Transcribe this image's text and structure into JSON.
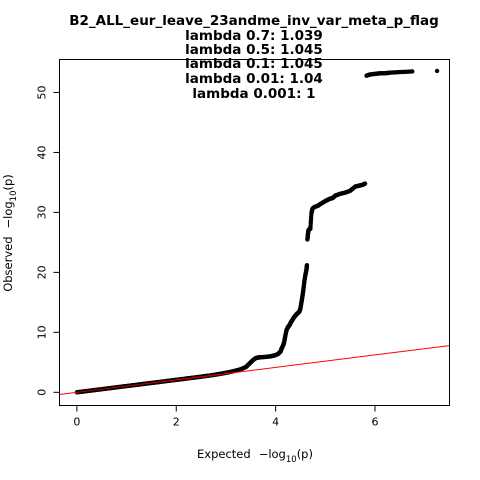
{
  "chart_data": {
    "type": "scatter",
    "title": "B2_ALL_eur_leave_23andme_inv_var_meta_p_flag",
    "lambda_lines": [
      "lambda 0.7: 1.039",
      "lambda 0.5: 1.045",
      "lambda 0.1: 1.045",
      "lambda 0.01: 1.04",
      "lambda 0.001: 1"
    ],
    "xlabel": {
      "prefix": "Expected",
      "minus": "−log",
      "sub": "10",
      "suffix": "(p)"
    },
    "ylabel": {
      "prefix": "Observed",
      "minus": "−log",
      "sub": "10",
      "suffix": "(p)"
    },
    "xlim": [
      -0.35,
      7.5
    ],
    "ylim": [
      -2.2,
      55.5
    ],
    "xticks": [
      0,
      2,
      4,
      6
    ],
    "yticks": [
      0,
      10,
      20,
      30,
      40,
      50
    ],
    "grid": false,
    "legend": "none",
    "point_color": "#000000",
    "reference_line": {
      "slope": 1.039,
      "intercept": 0,
      "color": "#ff0000"
    },
    "diagonal_segment": {
      "x0": 0,
      "x1": 2.8,
      "color": "#8b0000"
    },
    "series": [
      {
        "points": [
          [
            0.0,
            0.0
          ],
          [
            0.1,
            0.1
          ],
          [
            0.2,
            0.21
          ],
          [
            0.3,
            0.31
          ],
          [
            0.4,
            0.42
          ],
          [
            0.5,
            0.52
          ],
          [
            0.6,
            0.62
          ],
          [
            0.7,
            0.73
          ],
          [
            0.8,
            0.83
          ],
          [
            0.9,
            0.94
          ],
          [
            1.0,
            1.04
          ],
          [
            1.1,
            1.14
          ],
          [
            1.2,
            1.25
          ],
          [
            1.3,
            1.35
          ],
          [
            1.4,
            1.46
          ],
          [
            1.5,
            1.56
          ],
          [
            1.6,
            1.66
          ],
          [
            1.7,
            1.77
          ],
          [
            1.8,
            1.87
          ],
          [
            1.9,
            1.98
          ],
          [
            2.0,
            2.08
          ],
          [
            2.1,
            2.18
          ],
          [
            2.2,
            2.29
          ],
          [
            2.3,
            2.39
          ],
          [
            2.4,
            2.5
          ],
          [
            2.5,
            2.6
          ],
          [
            2.6,
            2.72
          ],
          [
            2.7,
            2.83
          ],
          [
            2.8,
            2.96
          ],
          [
            2.9,
            3.1
          ],
          [
            3.0,
            3.25
          ],
          [
            3.1,
            3.42
          ],
          [
            3.2,
            3.62
          ],
          [
            3.3,
            3.85
          ],
          [
            3.4,
            4.2
          ],
          [
            3.45,
            4.6
          ],
          [
            3.5,
            5.0
          ],
          [
            3.55,
            5.4
          ],
          [
            3.6,
            5.7
          ],
          [
            3.65,
            5.8
          ],
          [
            3.7,
            5.85
          ],
          [
            3.8,
            5.9
          ],
          [
            3.9,
            6.0
          ],
          [
            3.95,
            6.1
          ],
          [
            4.0,
            6.2
          ],
          [
            4.05,
            6.4
          ],
          [
            4.1,
            6.8
          ],
          [
            4.12,
            7.3
          ],
          [
            4.15,
            7.8
          ],
          [
            4.17,
            8.3
          ],
          [
            4.19,
            9.2
          ],
          [
            4.22,
            10.4
          ],
          [
            4.25,
            10.9
          ],
          [
            4.28,
            11.2
          ],
          [
            4.31,
            11.7
          ],
          [
            4.34,
            12.1
          ],
          [
            4.37,
            12.5
          ],
          [
            4.4,
            12.8
          ],
          [
            4.43,
            13.1
          ],
          [
            4.46,
            13.3
          ],
          [
            4.48,
            13.5
          ],
          [
            4.5,
            14.0
          ],
          [
            4.52,
            15.0
          ],
          [
            4.54,
            16.0
          ],
          [
            4.56,
            17.2
          ],
          [
            4.58,
            18.6
          ],
          [
            4.6,
            19.6
          ],
          [
            4.62,
            20.4
          ],
          [
            4.63,
            21.2
          ],
          [
            4.64,
            25.5
          ],
          [
            4.65,
            26.3
          ],
          [
            4.66,
            27.0
          ],
          [
            4.68,
            27.2
          ],
          [
            4.7,
            27.3
          ],
          [
            4.72,
            29.8
          ],
          [
            4.74,
            30.6
          ],
          [
            4.78,
            30.9
          ],
          [
            4.85,
            31.1
          ],
          [
            4.9,
            31.4
          ],
          [
            5.0,
            31.9
          ],
          [
            5.05,
            32.1
          ],
          [
            5.1,
            32.3
          ],
          [
            5.15,
            32.4
          ],
          [
            5.2,
            32.8
          ],
          [
            5.3,
            33.1
          ],
          [
            5.4,
            33.3
          ],
          [
            5.5,
            33.6
          ],
          [
            5.6,
            34.3
          ],
          [
            5.65,
            34.4
          ],
          [
            5.7,
            34.5
          ],
          [
            5.75,
            34.6
          ],
          [
            5.8,
            34.8
          ],
          [
            5.83,
            52.8
          ],
          [
            5.9,
            53.0
          ],
          [
            6.0,
            53.1
          ],
          [
            6.1,
            53.2
          ],
          [
            6.2,
            53.2
          ],
          [
            6.3,
            53.3
          ],
          [
            6.5,
            53.4
          ],
          [
            6.75,
            53.5
          ],
          [
            7.25,
            53.6
          ]
        ]
      }
    ]
  }
}
